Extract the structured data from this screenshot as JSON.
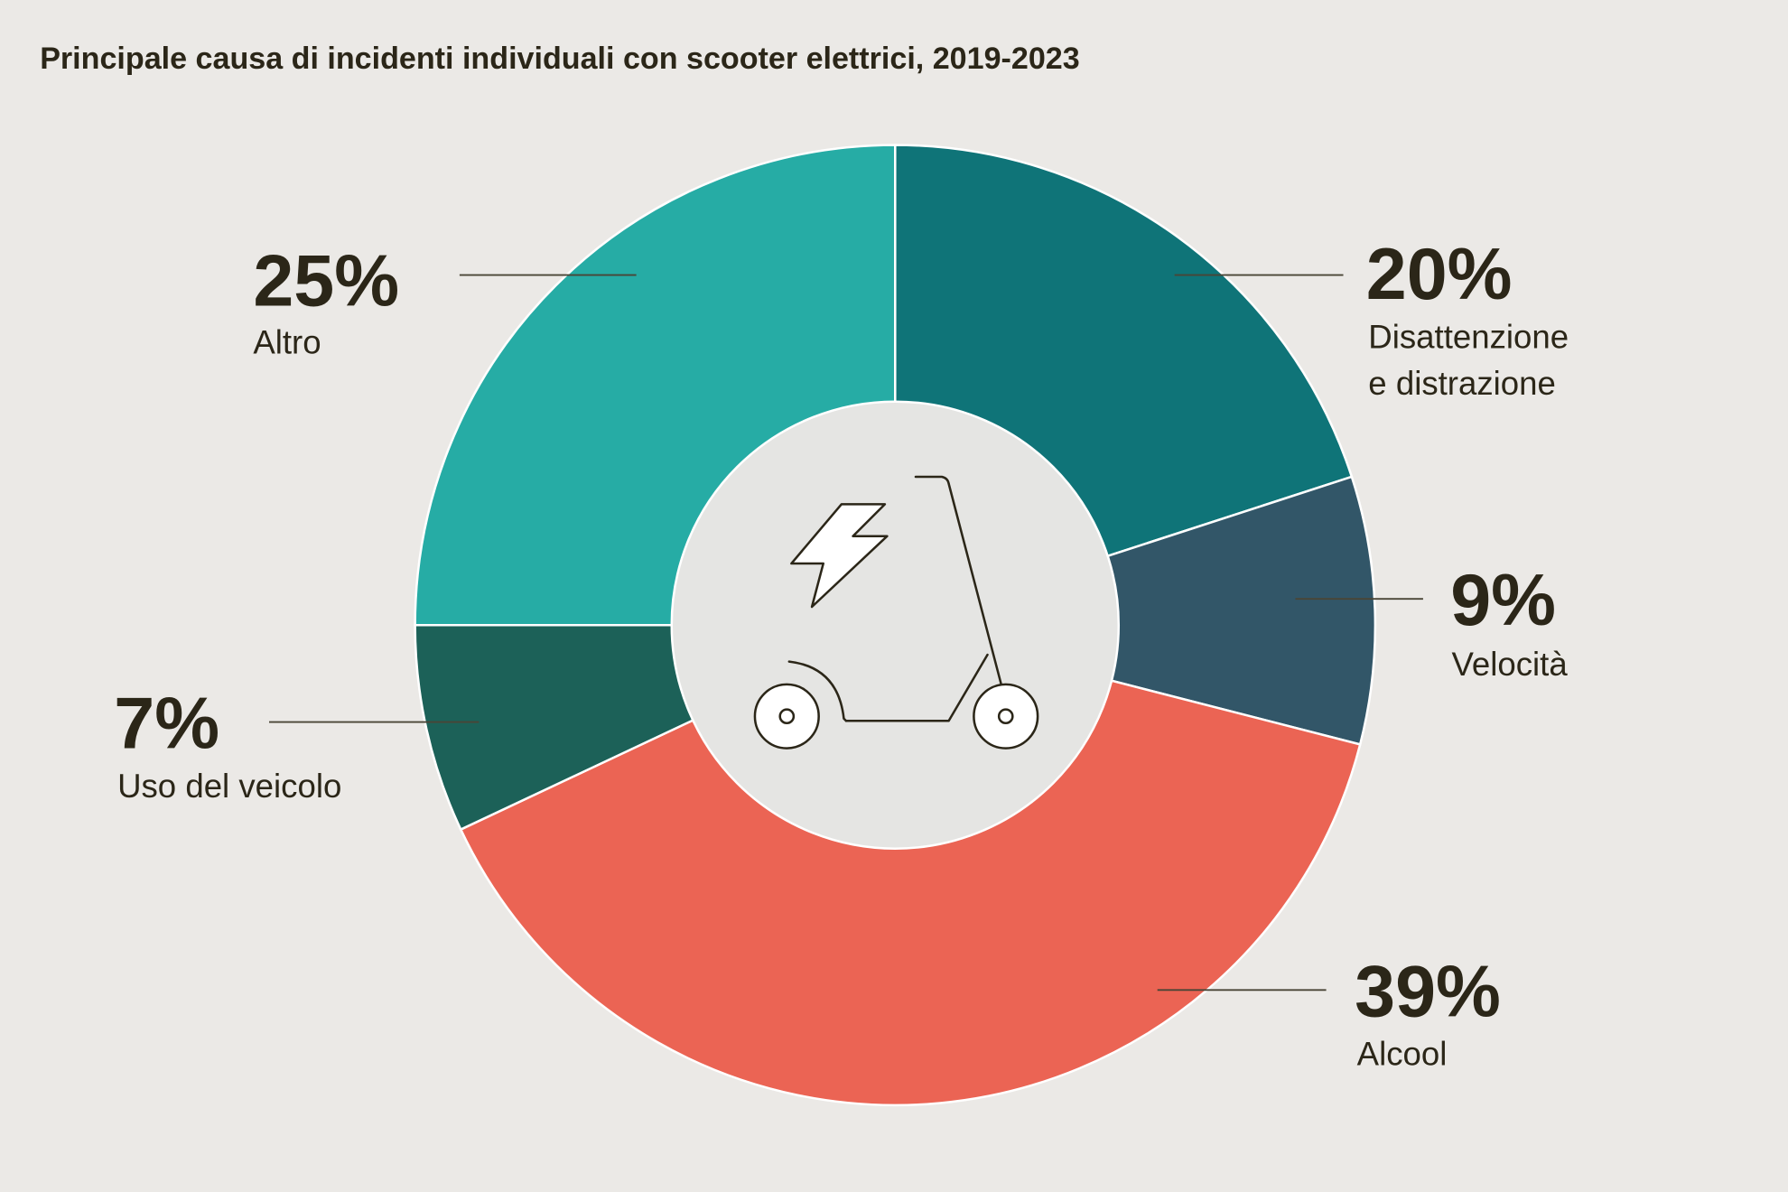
{
  "chart_data": {
    "type": "pie",
    "variant": "donut",
    "title": "Principale causa di incidenti individuali con scooter elettrici, 2019-2023",
    "unit": "%",
    "slices": [
      {
        "label": "Disattenzione e distrazione",
        "label_lines": [
          "Disattenzione",
          "e distrazione"
        ],
        "value": 20,
        "display": "20%",
        "color": "#0f7478"
      },
      {
        "label": "Velocità",
        "label_lines": [
          "Velocità"
        ],
        "value": 9,
        "display": "9%",
        "color": "#325668"
      },
      {
        "label": "Alcool",
        "label_lines": [
          "Alcool"
        ],
        "value": 39,
        "display": "39%",
        "color": "#eb6454"
      },
      {
        "label": "Uso del veicolo",
        "label_lines": [
          "Uso del veicolo"
        ],
        "value": 7,
        "display": "7%",
        "color": "#1c6158"
      },
      {
        "label": "Altro",
        "label_lines": [
          "Altro"
        ],
        "value": 25,
        "display": "25%",
        "color": "#26aca5"
      }
    ],
    "center_icon": "electric-scooter-icon"
  },
  "colors": {
    "background": "#ebe9e6",
    "center": "#e5e5e3",
    "text": "#2b2618"
  }
}
